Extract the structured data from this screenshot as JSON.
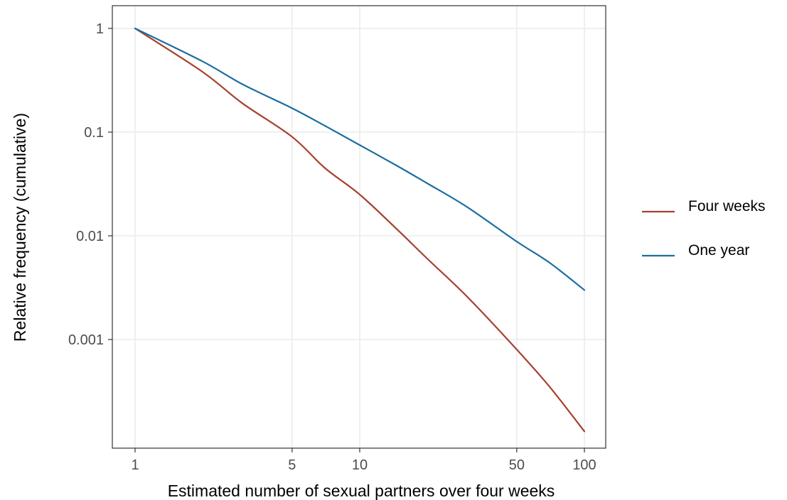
{
  "chart_data": {
    "type": "line",
    "xlabel": "Estimated number of sexual partners over four weeks",
    "ylabel": "Relative frequency (cumulative)",
    "x_scale": "log",
    "y_scale": "log",
    "xlim": [
      1,
      100
    ],
    "ylim": [
      0.0001,
      1
    ],
    "x_ticks": [
      1,
      5,
      10,
      50,
      100
    ],
    "x_tick_labels": [
      "1",
      "5",
      "10",
      "50",
      "100"
    ],
    "y_ticks": [
      1,
      0.1,
      0.01,
      0.001
    ],
    "y_tick_labels": [
      "1",
      "0.1",
      "0.01",
      "0.001"
    ],
    "grid": true,
    "legend_position": "right",
    "series": [
      {
        "name": "Four weeks",
        "color": "#a6402e",
        "x": [
          1,
          2,
          3,
          5,
          7,
          10,
          15,
          20,
          30,
          50,
          70,
          100
        ],
        "y": [
          1,
          0.38,
          0.19,
          0.09,
          0.045,
          0.025,
          0.011,
          0.006,
          0.0026,
          0.0008,
          0.00035,
          0.00013
        ]
      },
      {
        "name": "One year",
        "color": "#1c6e9e",
        "x": [
          1,
          2,
          3,
          5,
          7,
          10,
          15,
          20,
          30,
          50,
          70,
          100
        ],
        "y": [
          1,
          0.48,
          0.29,
          0.17,
          0.115,
          0.075,
          0.046,
          0.032,
          0.019,
          0.0088,
          0.0055,
          0.003
        ]
      }
    ]
  }
}
